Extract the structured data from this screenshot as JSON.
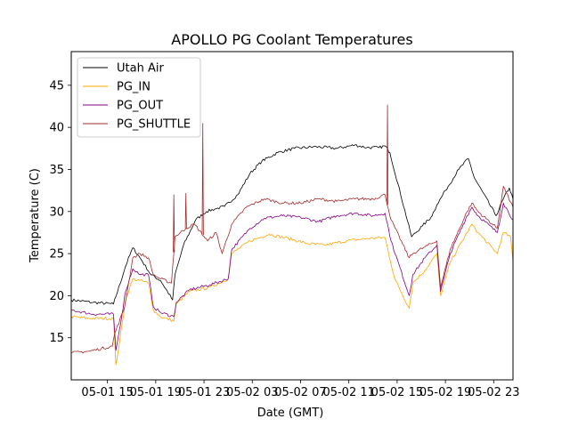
{
  "chart_data": {
    "type": "line",
    "title": "APOLLO PG Coolant Temperatures",
    "xlabel": "Date (GMT)",
    "ylabel": "Temperature (C)",
    "x_unit": "hours since 05-01 12:00 GMT",
    "xlim": [
      0,
      36.6
    ],
    "ylim": [
      10,
      49
    ],
    "xticks": [
      {
        "x": 3,
        "label": "05-01 15"
      },
      {
        "x": 7,
        "label": "05-01 19"
      },
      {
        "x": 11,
        "label": "05-01 23"
      },
      {
        "x": 15,
        "label": "05-02 03"
      },
      {
        "x": 19,
        "label": "05-02 07"
      },
      {
        "x": 23,
        "label": "05-02 11"
      },
      {
        "x": 27,
        "label": "05-02 15"
      },
      {
        "x": 31,
        "label": "05-02 19"
      },
      {
        "x": 35,
        "label": "05-02 23"
      }
    ],
    "yticks": [
      {
        "y": 15,
        "label": "15"
      },
      {
        "y": 20,
        "label": "20"
      },
      {
        "y": 25,
        "label": "25"
      },
      {
        "y": 30,
        "label": "30"
      },
      {
        "y": 35,
        "label": "35"
      },
      {
        "y": 40,
        "label": "40"
      },
      {
        "y": 45,
        "label": "45"
      }
    ],
    "legend_position": "upper-left",
    "series": [
      {
        "name": "Utah Air",
        "color": "#000000",
        "points": [
          [
            0,
            19.5
          ],
          [
            1.8,
            19.2
          ],
          [
            3.5,
            19.0
          ],
          [
            4.5,
            23.5
          ],
          [
            5.1,
            25.7
          ],
          [
            5.7,
            24.5
          ],
          [
            6.6,
            22.5
          ],
          [
            7.4,
            21.8
          ],
          [
            8.4,
            19.5
          ],
          [
            8.6,
            22.5
          ],
          [
            9.3,
            26.0
          ],
          [
            10.3,
            29.0
          ],
          [
            11.2,
            30.0
          ],
          [
            11.9,
            30.3
          ],
          [
            12.7,
            30.6
          ],
          [
            13.8,
            32.0
          ],
          [
            14.8,
            34.5
          ],
          [
            15.8,
            36.0
          ],
          [
            17.1,
            37.0
          ],
          [
            18.5,
            37.5
          ],
          [
            20.3,
            37.7
          ],
          [
            22.0,
            37.5
          ],
          [
            23.5,
            37.9
          ],
          [
            24.5,
            37.6
          ],
          [
            25.5,
            37.6
          ],
          [
            26.0,
            37.8
          ],
          [
            26.4,
            37.0
          ],
          [
            28.2,
            27.0
          ],
          [
            29.1,
            28.3
          ],
          [
            29.8,
            29.3
          ],
          [
            30.3,
            30.8
          ],
          [
            31.0,
            32.5
          ],
          [
            32.1,
            35.0
          ],
          [
            32.9,
            36.3
          ],
          [
            33.4,
            34.0
          ],
          [
            35.2,
            29.5
          ],
          [
            35.8,
            31.5
          ],
          [
            36.3,
            32.8
          ],
          [
            36.6,
            31.5
          ]
        ]
      },
      {
        "name": "PG_IN",
        "color": "#ffa500",
        "points": [
          [
            0,
            17.5
          ],
          [
            1.5,
            17.3
          ],
          [
            3.5,
            17.3
          ],
          [
            3.7,
            11.8
          ],
          [
            4.0,
            14.5
          ],
          [
            4.5,
            19.5
          ],
          [
            5.1,
            22.0
          ],
          [
            5.7,
            21.8
          ],
          [
            6.4,
            21.5
          ],
          [
            6.8,
            18.3
          ],
          [
            7.4,
            17.5
          ],
          [
            8.5,
            17.0
          ],
          [
            8.7,
            19.0
          ],
          [
            9.8,
            20.5
          ],
          [
            11.5,
            21.0
          ],
          [
            13.0,
            22.0
          ],
          [
            13.3,
            25.0
          ],
          [
            14.8,
            26.5
          ],
          [
            16.4,
            27.3
          ],
          [
            18.0,
            26.8
          ],
          [
            19.5,
            26.2
          ],
          [
            21.0,
            26.0
          ],
          [
            22.8,
            26.5
          ],
          [
            24.5,
            26.8
          ],
          [
            26.0,
            26.9
          ],
          [
            26.8,
            22.0
          ],
          [
            28.0,
            18.5
          ],
          [
            28.3,
            21.5
          ],
          [
            29.3,
            23.0
          ],
          [
            30.3,
            25.0
          ],
          [
            30.6,
            20.0
          ],
          [
            31.4,
            24.0
          ],
          [
            32.8,
            27.5
          ],
          [
            33.2,
            28.5
          ],
          [
            33.7,
            27.5
          ],
          [
            35.3,
            25.0
          ],
          [
            35.8,
            27.5
          ],
          [
            36.4,
            27.0
          ],
          [
            36.6,
            24.0
          ]
        ]
      },
      {
        "name": "PG_OUT",
        "color": "#800080",
        "points": [
          [
            0,
            18.3
          ],
          [
            1.8,
            17.8
          ],
          [
            3.5,
            17.8
          ],
          [
            3.7,
            13.5
          ],
          [
            4.0,
            16.0
          ],
          [
            4.5,
            20.5
          ],
          [
            5.1,
            23.2
          ],
          [
            5.7,
            22.5
          ],
          [
            6.4,
            22.5
          ],
          [
            6.8,
            18.7
          ],
          [
            7.4,
            18.0
          ],
          [
            8.5,
            17.5
          ],
          [
            8.7,
            19.2
          ],
          [
            9.8,
            20.7
          ],
          [
            11.5,
            21.3
          ],
          [
            13.0,
            22.0
          ],
          [
            13.3,
            25.5
          ],
          [
            14.8,
            28.0
          ],
          [
            16.0,
            29.2
          ],
          [
            17.5,
            29.5
          ],
          [
            19.0,
            29.3
          ],
          [
            20.5,
            28.8
          ],
          [
            22.0,
            29.5
          ],
          [
            23.5,
            29.8
          ],
          [
            25.0,
            29.5
          ],
          [
            26.0,
            29.8
          ],
          [
            26.5,
            26.5
          ],
          [
            28.0,
            20.0
          ],
          [
            28.3,
            22.5
          ],
          [
            29.3,
            24.5
          ],
          [
            30.3,
            26.0
          ],
          [
            30.6,
            20.5
          ],
          [
            31.4,
            25.0
          ],
          [
            32.8,
            29.5
          ],
          [
            33.2,
            30.5
          ],
          [
            33.7,
            29.5
          ],
          [
            35.3,
            27.5
          ],
          [
            35.8,
            31.0
          ],
          [
            36.6,
            29.0
          ]
        ]
      },
      {
        "name": "PG_SHUTTLE",
        "color": "#a52a2a",
        "points": [
          [
            0,
            13.2
          ],
          [
            1.5,
            13.4
          ],
          [
            3.4,
            14.0
          ],
          [
            3.6,
            15.5
          ],
          [
            4.4,
            18.5
          ],
          [
            5.1,
            24.5
          ],
          [
            5.7,
            25.0
          ],
          [
            6.4,
            24.5
          ],
          [
            6.8,
            22.5
          ],
          [
            7.4,
            22.0
          ],
          [
            8.3,
            21.5
          ],
          [
            8.6,
            27.0
          ],
          [
            9.5,
            28.0
          ],
          [
            10.2,
            28.5
          ],
          [
            11.3,
            26.5
          ],
          [
            12.0,
            27.5
          ],
          [
            12.5,
            25.0
          ],
          [
            13.3,
            28.5
          ],
          [
            14.5,
            30.5
          ],
          [
            16.0,
            31.5
          ],
          [
            17.5,
            31.0
          ],
          [
            19.0,
            31.0
          ],
          [
            20.5,
            31.5
          ],
          [
            22.0,
            31.2
          ],
          [
            23.5,
            31.5
          ],
          [
            25.0,
            31.5
          ],
          [
            26.0,
            32.0
          ],
          [
            26.5,
            29.0
          ],
          [
            28.0,
            24.5
          ],
          [
            28.3,
            25.0
          ],
          [
            29.3,
            25.8
          ],
          [
            30.3,
            26.5
          ],
          [
            30.6,
            21.0
          ],
          [
            31.4,
            25.5
          ],
          [
            32.8,
            30.0
          ],
          [
            33.2,
            31.0
          ],
          [
            33.7,
            30.0
          ],
          [
            35.3,
            28.0
          ],
          [
            35.8,
            33.0
          ],
          [
            36.6,
            30.5
          ]
        ],
        "spikes": [
          [
            8.5,
            32.0
          ],
          [
            9.5,
            32.2
          ],
          [
            10.9,
            40.5
          ],
          [
            26.2,
            42.7
          ]
        ]
      }
    ]
  }
}
